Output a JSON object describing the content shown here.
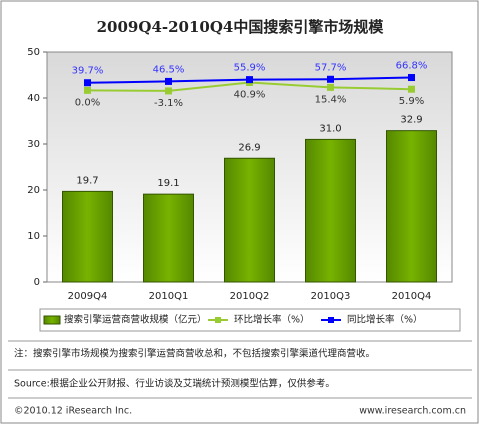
{
  "chart_data": {
    "type": "bar",
    "title": "2009Q4-2010Q4中国搜索引擎市场规模",
    "categories": [
      "2009Q4",
      "2010Q1",
      "2010Q2",
      "2010Q3",
      "2010Q4"
    ],
    "ylim": [
      0,
      50
    ],
    "yticks": [
      0,
      10,
      20,
      30,
      40,
      50
    ],
    "y2lim": [
      -1000,
      200
    ],
    "series": [
      {
        "name": "搜索引擎运营商营收规模（亿元）",
        "type": "bar",
        "color": "#669900",
        "values": [
          19.7,
          19.1,
          26.9,
          31.0,
          32.9
        ],
        "value_labels": [
          "19.7",
          "19.1",
          "26.9",
          "31.0",
          "32.9"
        ]
      },
      {
        "name": "环比增长率（%）",
        "type": "line",
        "axis": "y2",
        "color": "#99cc33",
        "values": [
          0.0,
          -3.1,
          40.9,
          15.4,
          5.9
        ],
        "value_labels": [
          "0.0%",
          "-3.1%",
          "40.9%",
          "15.4%",
          "5.9%"
        ]
      },
      {
        "name": "同比增长率（%）",
        "type": "line",
        "axis": "y2",
        "color": "#0000ff",
        "values": [
          39.7,
          46.5,
          55.9,
          57.7,
          66.8
        ],
        "value_labels": [
          "39.7%",
          "46.5%",
          "55.9%",
          "57.7%",
          "66.8%"
        ]
      }
    ],
    "note": "注：搜索引擎市场规模为搜索引擎运营商营收总和，不包括搜索引擎渠道代理商营收。",
    "source": "Source:根据企业公开财报、行业访谈及艾瑞统计预测模型估算，仅供参考。"
  },
  "footer": {
    "copyright": "©2010.12 iResearch Inc.",
    "website": "www.iresearch.com.cn"
  }
}
